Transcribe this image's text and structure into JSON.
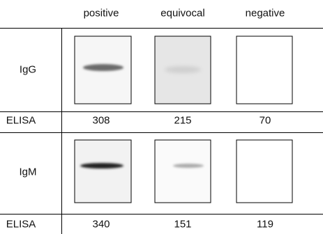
{
  "header": {
    "columns": [
      "positive",
      "equivocal",
      "negative"
    ]
  },
  "rows": [
    {
      "label": "IgG"
    },
    {
      "label": "ELISA",
      "values": [
        308,
        215,
        70
      ]
    },
    {
      "label": "IgM"
    },
    {
      "label": "ELISA",
      "values": [
        340,
        151,
        119
      ]
    }
  ]
}
